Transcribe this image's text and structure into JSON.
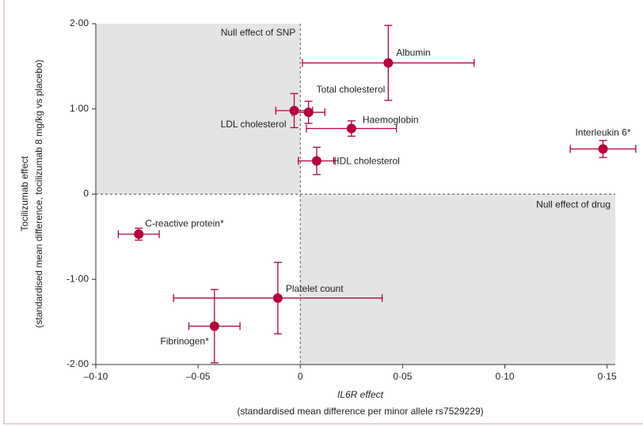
{
  "chart_data": {
    "type": "scatter",
    "x_label": [
      "IL6R effect",
      "(standardised mean difference per minor allele rs7529229)"
    ],
    "y_label": [
      "Tocilizumab effect",
      "(standardised mean difference, tocilizumab 8 mg/kg vs placebo)"
    ],
    "annotations": [
      "Null effect of SNP",
      "Null effect of drug"
    ],
    "categories": [
      "Albumin",
      "Total cholesterol",
      "LDL cholesterol",
      "Haemoglobin",
      "HDL cholesterol",
      "Interleukin 6*",
      "C-reactive protein*",
      "Platelet count",
      "Fibrinogen*"
    ],
    "series": [
      {
        "color": "#b5003a",
        "x": [
          0.043,
          0.004,
          -0.003,
          0.025,
          0.008,
          0.148,
          -0.079,
          -0.011,
          -0.042
        ],
        "values": [
          1.54,
          0.96,
          0.98,
          0.77,
          0.39,
          0.53,
          -0.47,
          -1.22,
          -1.55
        ],
        "xerr": [
          0.042,
          0.008,
          0.009,
          0.022,
          0.009,
          0.016,
          0.01,
          0.051,
          0.0125
        ],
        "yerr": [
          0.44,
          0.13,
          0.2,
          0.09,
          0.16,
          0.1,
          0.07,
          0.42,
          0.43
        ]
      }
    ],
    "xlim": [
      -0.1,
      0.154
    ],
    "ylim": [
      -2,
      2
    ],
    "xticks": [
      {
        "value": -0.1,
        "label": "–0·10"
      },
      {
        "value": -0.05,
        "label": "–0·05"
      },
      0,
      {
        "value": 0.05,
        "label": "0·05"
      },
      {
        "value": 0.1,
        "label": "0·10"
      },
      {
        "value": 0.15,
        "label": "0·15"
      }
    ],
    "yticks": [
      {
        "value": 2,
        "label": "2·00"
      },
      {
        "value": 1,
        "label": "1·00"
      },
      0,
      {
        "value": -1,
        "label": "-1·00"
      },
      {
        "value": -2,
        "label": "-2·00"
      }
    ],
    "shade": "#e4e4e4"
  }
}
